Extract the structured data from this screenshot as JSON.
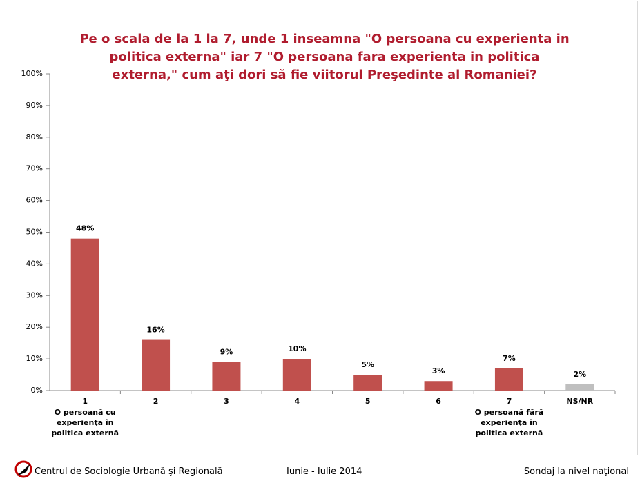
{
  "chart_data": {
    "type": "bar",
    "title": "Pe o scala de la 1 la 7, unde 1 inseamna \"O persoana cu experienta in politica externa\" iar 7 \"O persoana fara experienta in politica externa,\" cum aţi dori să fie viitorul Preşedinte al Romaniei?",
    "categories": [
      "1",
      "2",
      "3",
      "4",
      "5",
      "6",
      "7",
      "NS/NR"
    ],
    "category_descriptions": [
      "O persoană cu experienţă în politica externă",
      null,
      null,
      null,
      null,
      null,
      "O persoană fără experienţă în politica externă",
      null
    ],
    "values": [
      48,
      16,
      9,
      10,
      5,
      3,
      7,
      2
    ],
    "value_labels": [
      "48%",
      "16%",
      "9%",
      "10%",
      "5%",
      "3%",
      "7%",
      "2%"
    ],
    "colors": [
      "#c0504d",
      "#c0504d",
      "#c0504d",
      "#c0504d",
      "#c0504d",
      "#c0504d",
      "#c0504d",
      "#bfbfbf"
    ],
    "ylim": [
      0,
      100
    ],
    "yticks": [
      {
        "value": 0,
        "label": "0%"
      },
      {
        "value": 10,
        "label": "10%"
      },
      {
        "value": 20,
        "label": "20%"
      },
      {
        "value": 30,
        "label": "30%"
      },
      {
        "value": 40,
        "label": "40%"
      },
      {
        "value": 50,
        "label": "50%"
      },
      {
        "value": 60,
        "label": "60%"
      },
      {
        "value": 70,
        "label": "70%"
      },
      {
        "value": 80,
        "label": "80%"
      },
      {
        "value": 90,
        "label": "90%"
      },
      {
        "value": 100,
        "label": "100%"
      }
    ],
    "grid": false
  },
  "footer": {
    "organization": "Centrul de Sociologie Urbană şi Regională",
    "period": "Iunie - Iulie 2014",
    "survey": "Sondaj la nivel naţional"
  }
}
